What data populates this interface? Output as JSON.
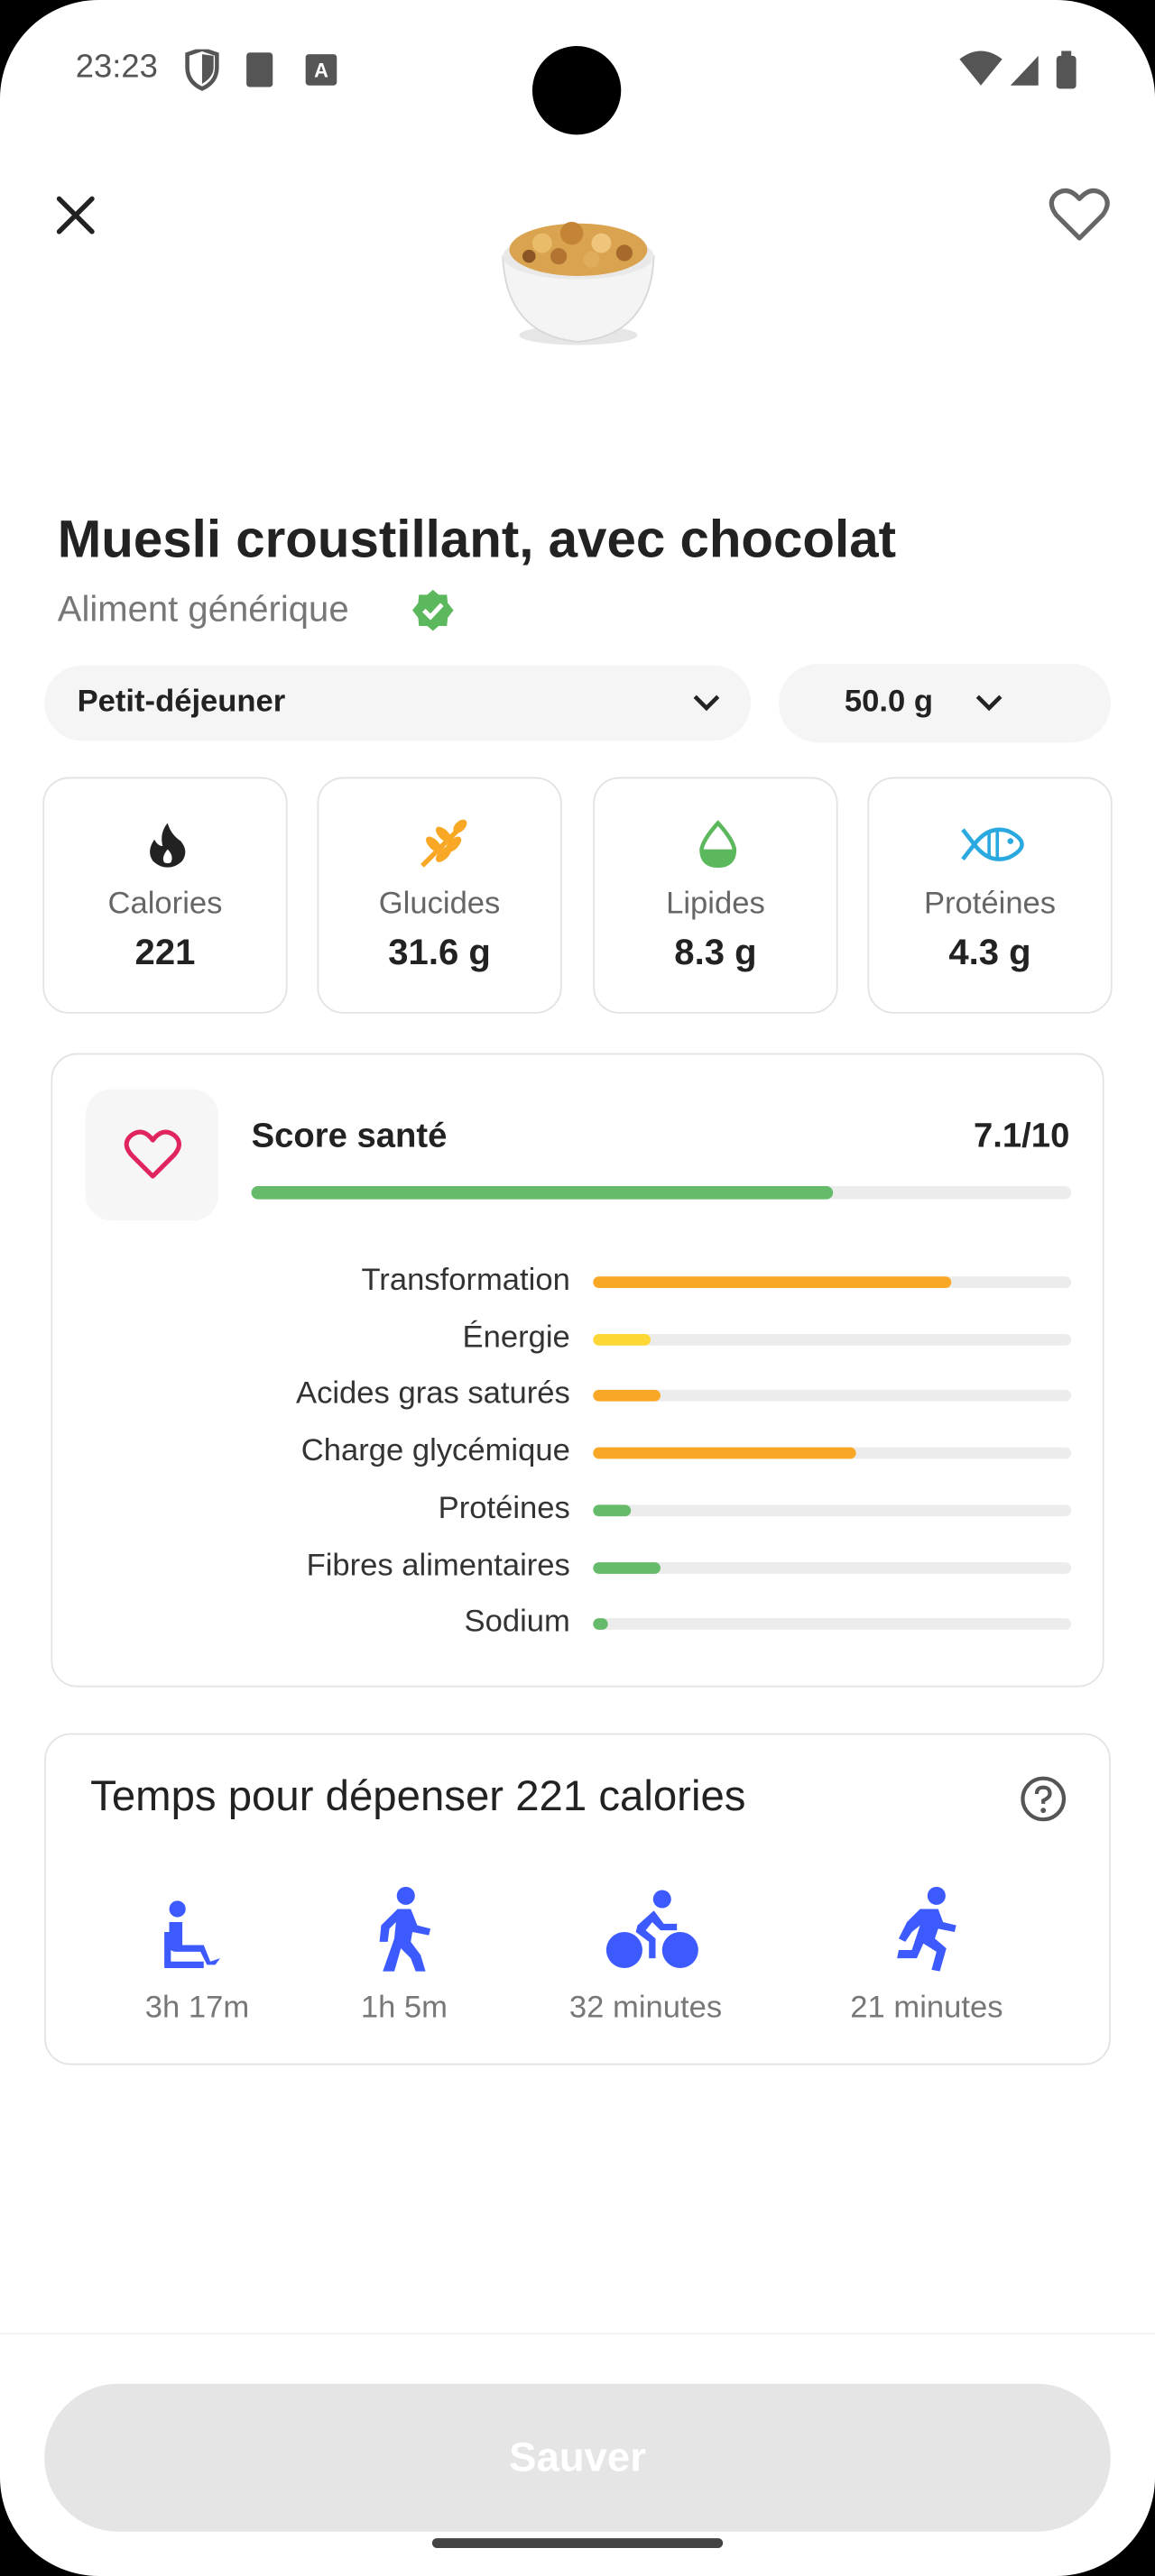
{
  "status_bar": {
    "time": "23:23"
  },
  "food": {
    "name": "Muesli croustillant, avec chocolat",
    "subtitle": "Aliment générique"
  },
  "selectors": {
    "meal": "Petit-déjeuner",
    "portion": "50.0 g"
  },
  "nutrients": [
    {
      "label": "Calories",
      "value": "221"
    },
    {
      "label": "Glucides",
      "value": "31.6 g"
    },
    {
      "label": "Lipides",
      "value": "8.3 g"
    },
    {
      "label": "Protéines",
      "value": "4.3 g"
    }
  ],
  "health_score": {
    "title": "Score santé",
    "score": {
      "value": 7.1,
      "max": 10,
      "label": "7.1/10"
    },
    "color": "#66bb6a",
    "xlim": [
      0,
      100
    ],
    "criteria": [
      {
        "label": "Transformation",
        "value": 75,
        "color": "#f9a825"
      },
      {
        "label": "Énergie",
        "value": 12,
        "color": "#fdd835"
      },
      {
        "label": "Acides gras saturés",
        "value": 14,
        "color": "#f9a825"
      },
      {
        "label": "Charge glycémique",
        "value": 55,
        "color": "#f9a825"
      },
      {
        "label": "Protéines",
        "value": 8,
        "color": "#66bb6a"
      },
      {
        "label": "Fibres alimentaires",
        "value": 14,
        "color": "#66bb6a"
      },
      {
        "label": "Sodium",
        "value": 3,
        "color": "#66bb6a"
      }
    ]
  },
  "exercise": {
    "title": "Temps pour dépenser 221 calories",
    "activities": [
      {
        "label": "3h 17m"
      },
      {
        "label": "1h 5m"
      },
      {
        "label": "32 minutes"
      },
      {
        "label": "21 minutes"
      }
    ]
  },
  "button": "Sauver"
}
